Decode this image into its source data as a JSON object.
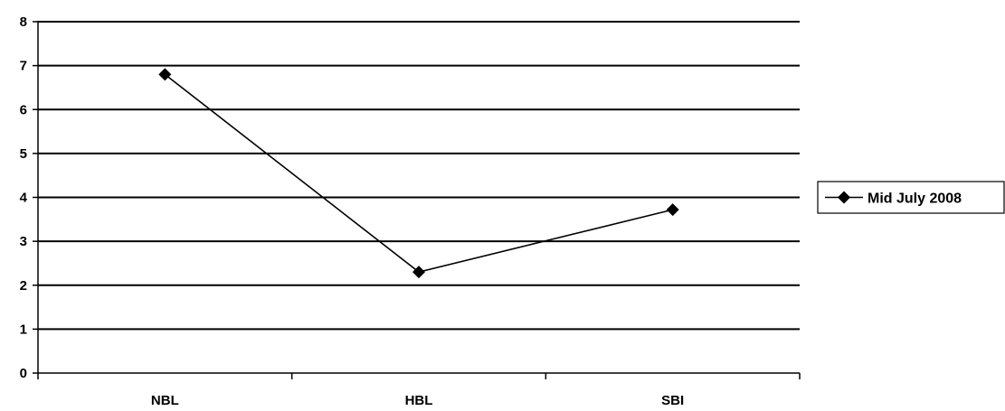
{
  "chart_data": {
    "type": "line",
    "categories": [
      "NBL",
      "HBL",
      "SBI"
    ],
    "series": [
      {
        "name": "Mid July 2008",
        "values": [
          6.8,
          2.3,
          3.72
        ]
      }
    ],
    "ylim": [
      0,
      8
    ],
    "yticks": [
      "0",
      "1",
      "2",
      "3",
      "4",
      "5",
      "6",
      "7",
      "8"
    ],
    "grid": true,
    "legend": "right",
    "colors": {
      "line": "#000000",
      "grid": "#000000",
      "marker": "#000000"
    }
  }
}
